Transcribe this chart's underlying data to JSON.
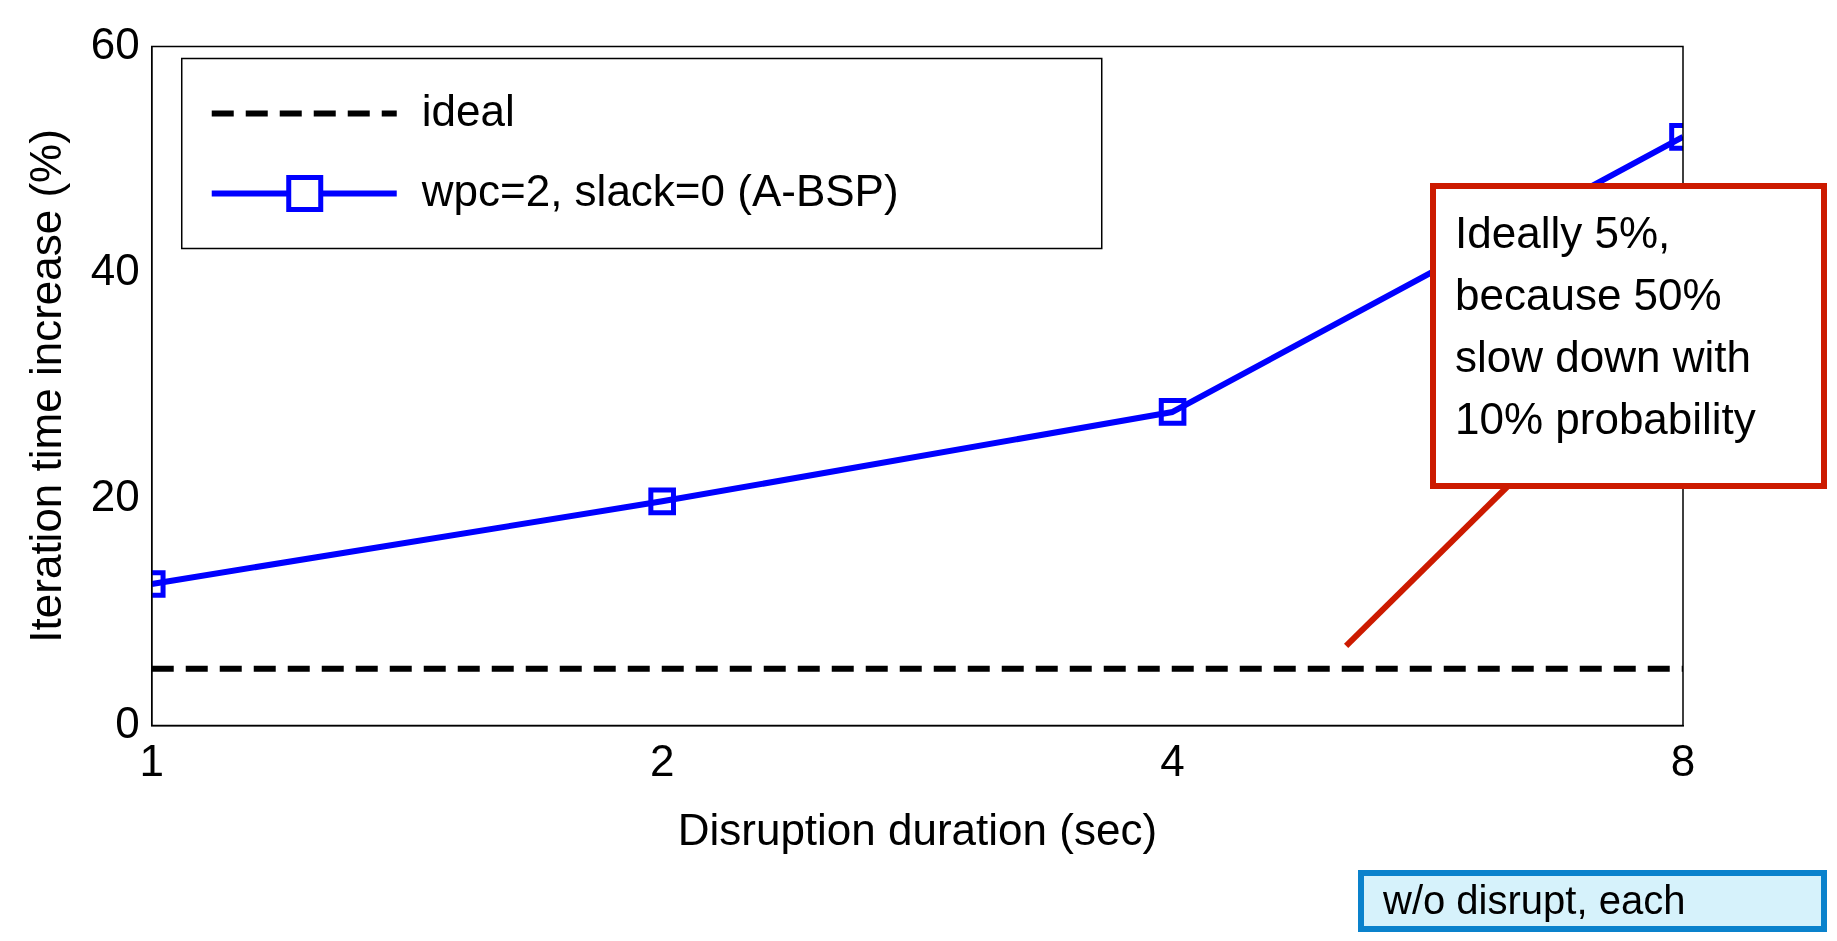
{
  "chart_data": {
    "type": "line",
    "xlabel": "Disruption duration (sec)",
    "ylabel": "Iteration time increase (%)",
    "x": [
      1,
      2,
      4,
      8
    ],
    "xlim": [
      1,
      8
    ],
    "xticks": [
      1,
      2,
      4,
      8
    ],
    "log": "x",
    "ylim": [
      0,
      60
    ],
    "yticks": [
      0,
      20,
      40,
      60
    ],
    "grid": false,
    "legend": "top left",
    "series": [
      {
        "name": "ideal",
        "color": "#000000",
        "values": [
          5,
          5,
          5,
          5
        ],
        "line_style": "dashed",
        "marker": "none"
      },
      {
        "name": "wpc=2, slack=0 (A-BSP)",
        "color": "#0000ff",
        "values": [
          12.5,
          19.8,
          27.7,
          52
        ],
        "line_style": "solid",
        "marker": "square"
      }
    ],
    "annotations": [
      "Ideally 5%,\nbecause 50%\nslow down with\n10% probability",
      "w/o disrupt, each"
    ]
  }
}
